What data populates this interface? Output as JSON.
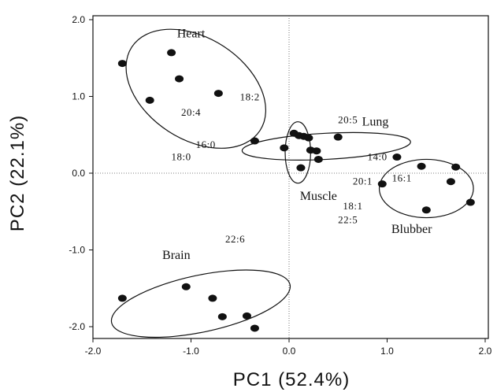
{
  "chart_data": {
    "type": "scatter",
    "xlabel": "PC1 (52.4%)",
    "ylabel": "PC2 (22.1%)",
    "xlim": [
      -2.0,
      2.0
    ],
    "ylim": [
      -2.1,
      2.0
    ],
    "xticks": [
      "-2.0",
      "-1.0",
      "0.0",
      "1.0",
      "2.0"
    ],
    "yticks": [
      "2.0",
      "1.0",
      "0.0",
      "-1.0",
      "-2.0"
    ],
    "reference_lines": {
      "x": 0,
      "y": 0,
      "style": "dotted"
    },
    "groups": [
      {
        "name": "Heart",
        "points": [
          [
            -1.7,
            1.43
          ],
          [
            -1.2,
            1.57
          ],
          [
            -1.12,
            1.23
          ],
          [
            -0.72,
            1.04
          ],
          [
            -1.42,
            0.95
          ]
        ]
      },
      {
        "name": "Lung",
        "points": [
          [
            -0.35,
            0.42
          ],
          [
            0.5,
            0.47
          ],
          [
            1.1,
            0.21
          ]
        ]
      },
      {
        "name": "Muscle",
        "points": [
          [
            -0.05,
            0.33
          ],
          [
            0.05,
            0.52
          ],
          [
            0.1,
            0.49
          ],
          [
            0.15,
            0.48
          ],
          [
            0.2,
            0.46
          ],
          [
            0.22,
            0.3
          ],
          [
            0.28,
            0.29
          ],
          [
            0.3,
            0.18
          ],
          [
            0.12,
            0.07
          ]
        ]
      },
      {
        "name": "Blubber",
        "points": [
          [
            1.35,
            0.09
          ],
          [
            1.7,
            0.08
          ],
          [
            1.65,
            -0.11
          ],
          [
            0.95,
            -0.14
          ],
          [
            1.85,
            -0.38
          ],
          [
            1.4,
            -0.48
          ]
        ]
      },
      {
        "name": "Brain",
        "points": [
          [
            -1.7,
            -1.63
          ],
          [
            -1.05,
            -1.48
          ],
          [
            -0.78,
            -1.63
          ],
          [
            -0.68,
            -1.87
          ],
          [
            -0.43,
            -1.86
          ],
          [
            -0.35,
            -2.02
          ]
        ]
      }
    ],
    "fatty_acid_labels": [
      {
        "text": "18:2",
        "x": -0.4,
        "y": 0.95
      },
      {
        "text": "20:4",
        "x": -1.0,
        "y": 0.75
      },
      {
        "text": "16:0",
        "x": -0.85,
        "y": 0.33
      },
      {
        "text": "18:0",
        "x": -1.1,
        "y": 0.17
      },
      {
        "text": "20:5",
        "x": 0.6,
        "y": 0.65
      },
      {
        "text": "14:0",
        "x": 0.9,
        "y": 0.17
      },
      {
        "text": "20:1",
        "x": 0.75,
        "y": -0.15
      },
      {
        "text": "16:1",
        "x": 1.15,
        "y": -0.11
      },
      {
        "text": "18:1",
        "x": 0.65,
        "y": -0.47
      },
      {
        "text": "22:5",
        "x": 0.6,
        "y": -0.65
      },
      {
        "text": "22:6",
        "x": -0.55,
        "y": -0.9
      }
    ],
    "group_labels": [
      {
        "text": "Heart",
        "x": -1.0,
        "y": 1.77
      },
      {
        "text": "Lung",
        "x": 0.88,
        "y": 0.62
      },
      {
        "text": "Muscle",
        "x": 0.3,
        "y": -0.35
      },
      {
        "text": "Blubber",
        "x": 1.25,
        "y": -0.78
      },
      {
        "text": "Brain",
        "x": -1.15,
        "y": -1.12
      }
    ],
    "ellipses": [
      {
        "name": "Heart",
        "cx": -0.95,
        "cy": 1.1,
        "rx": 0.78,
        "ry": 0.66,
        "angle": 33
      },
      {
        "name": "Lung",
        "cx": 0.38,
        "cy": 0.35,
        "rx": 0.86,
        "ry": 0.17,
        "angle": -3
      },
      {
        "name": "Muscle",
        "cx": 0.09,
        "cy": 0.27,
        "rx": 0.13,
        "ry": 0.4,
        "angle": 0
      },
      {
        "name": "Blubber",
        "cx": 1.4,
        "cy": -0.2,
        "rx": 0.48,
        "ry": 0.38,
        "angle": 0
      },
      {
        "name": "Brain",
        "cx": -0.9,
        "cy": -1.7,
        "rx": 0.93,
        "ry": 0.37,
        "angle": -12
      }
    ]
  }
}
